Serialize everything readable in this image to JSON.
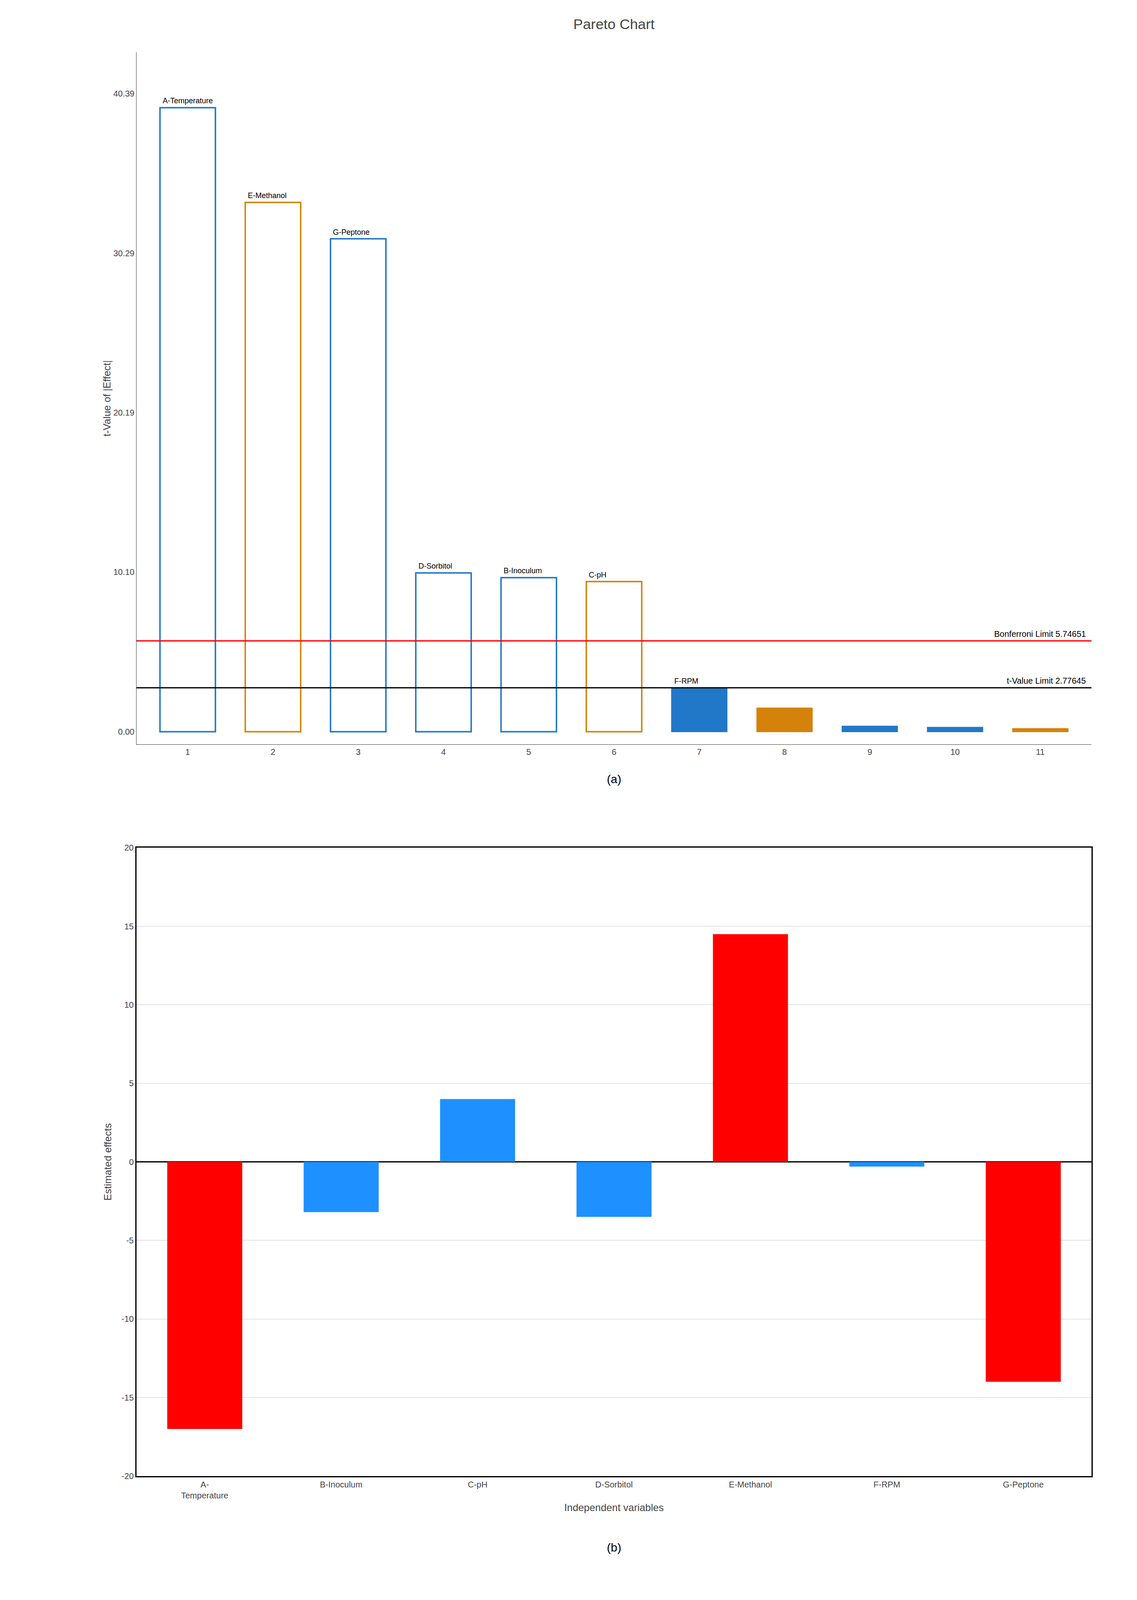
{
  "chart_data": [
    {
      "type": "bar",
      "title": "Pareto Chart",
      "ylabel": "t-Value of |Effect|",
      "xlim": [
        0.4,
        11.6
      ],
      "xticks": [
        1,
        2,
        3,
        4,
        5,
        6,
        7,
        8,
        9,
        10,
        11
      ],
      "ylim": [
        -0.8,
        43
      ],
      "yticks": [
        {
          "value": 0,
          "label": "0.00"
        },
        {
          "value": 10.1,
          "label": "10.10"
        },
        20.19,
        30.29,
        40.39
      ],
      "grid": false,
      "series": [
        {
          "marker": "outline",
          "x": [
            1,
            2,
            3,
            4,
            5,
            6
          ],
          "values": [
            39.5,
            33.5,
            31.2,
            10.05,
            9.75,
            9.5
          ],
          "colors": [
            "#2278C8",
            "#D4820A",
            "#2278C8",
            "#2278C8",
            "#2278C8",
            "#D4820A"
          ]
        },
        {
          "marker": "filled",
          "x": [
            7,
            8,
            9,
            10,
            11
          ],
          "values": [
            2.77,
            1.5,
            0.35,
            0.28,
            0.2
          ],
          "colors": [
            "#2278C8",
            "#D4820A",
            "#2278C8",
            "#2278C8",
            "#D4820A"
          ]
        }
      ],
      "annotations": [
        {
          "type": "hline",
          "y": 5.74651,
          "color": "red",
          "text": "Bonferroni Limit 5.74651"
        },
        {
          "type": "hline",
          "y": 2.77645,
          "color": "black",
          "text": "t-Value Limit 2.77645"
        },
        {
          "type": "bar_label",
          "x": 1,
          "text": "A-Temperature"
        },
        {
          "type": "bar_label",
          "x": 2,
          "text": "E-Methanol"
        },
        {
          "type": "bar_label",
          "x": 3,
          "text": "G-Peptone"
        },
        {
          "type": "bar_label",
          "x": 4,
          "text": "D-Sorbitol"
        },
        {
          "type": "bar_label",
          "x": 5,
          "text": "B-Inoculum"
        },
        {
          "type": "bar_label",
          "x": 6,
          "text": "C-pH"
        },
        {
          "type": "bar_label",
          "x": 7,
          "text": "F-RPM"
        },
        {
          "type": "caption",
          "text": "(a)"
        }
      ]
    },
    {
      "type": "bar",
      "xlabel": "Independent variables",
      "ylabel": "Estimated effects",
      "categories": [
        "A-\nTemperature",
        "B-Inoculum",
        "C-pH",
        "D-Sorbitol",
        "E-Methanol",
        "F-RPM",
        "G-Peptone"
      ],
      "values": [
        -17.0,
        -3.2,
        4.0,
        -3.5,
        14.5,
        -0.3,
        -14.0
      ],
      "colors": [
        "#FF0000",
        "#1E90FF",
        "#1E90FF",
        "#1E90FF",
        "#FF0000",
        "#1E90FF",
        "#FF0000"
      ],
      "ylim": [
        -20,
        20
      ],
      "yticks": [
        -20,
        -15,
        -10,
        -5,
        0,
        5,
        10,
        15,
        20
      ],
      "grid": true,
      "annotations": [
        {
          "type": "caption",
          "text": "(b)"
        }
      ]
    }
  ]
}
